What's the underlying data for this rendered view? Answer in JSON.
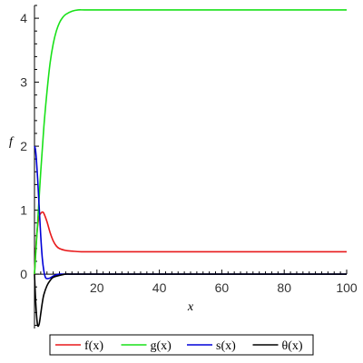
{
  "chart_data": {
    "type": "line",
    "xlabel": "x",
    "ylabel": "f",
    "xlim": [
      0,
      100
    ],
    "ylim": [
      -0.85,
      4.2
    ],
    "x_ticks": [
      20,
      40,
      60,
      80,
      100
    ],
    "y_ticks": [
      0,
      1,
      2,
      3,
      4
    ],
    "legend_position": "bottom",
    "grid": false,
    "series": [
      {
        "name": "f(x)",
        "color": "#e8191b",
        "x": [
          0,
          0.5,
          1,
          1.5,
          2,
          2.5,
          3,
          4,
          5,
          6,
          7,
          8,
          10,
          12,
          15,
          20,
          30,
          50,
          100
        ],
        "y": [
          0,
          0.45,
          0.75,
          0.9,
          0.95,
          0.97,
          0.95,
          0.82,
          0.65,
          0.52,
          0.44,
          0.4,
          0.37,
          0.36,
          0.35,
          0.35,
          0.35,
          0.35,
          0.35
        ]
      },
      {
        "name": "g(x)",
        "color": "#19e119",
        "x": [
          0,
          0.5,
          1,
          2,
          3,
          4,
          5,
          6,
          7,
          8,
          9,
          10,
          12,
          14,
          16,
          20,
          30,
          50,
          100
        ],
        "y": [
          0,
          0.4,
          0.8,
          1.6,
          2.3,
          2.85,
          3.3,
          3.6,
          3.8,
          3.93,
          4.01,
          4.06,
          4.11,
          4.13,
          4.13,
          4.13,
          4.13,
          4.13,
          4.13
        ]
      },
      {
        "name": "s(x)",
        "color": "#0000d8",
        "x": [
          0,
          0.3,
          0.6,
          1,
          1.5,
          2,
          2.5,
          3,
          3.5,
          4,
          5,
          6,
          7,
          8,
          10,
          15,
          30,
          100
        ],
        "y": [
          2.0,
          1.95,
          1.8,
          1.5,
          1.05,
          0.6,
          0.25,
          0.05,
          -0.05,
          -0.07,
          -0.06,
          -0.03,
          -0.01,
          0,
          0,
          0,
          0,
          0
        ]
      },
      {
        "name": "θ(x)",
        "color": "#000000",
        "x": [
          0,
          0.3,
          0.6,
          1,
          1.5,
          2,
          2.5,
          3,
          4,
          5,
          6,
          8,
          10,
          12,
          15,
          20,
          30,
          100
        ],
        "y": [
          0,
          -0.35,
          -0.6,
          -0.8,
          -0.78,
          -0.62,
          -0.45,
          -0.32,
          -0.18,
          -0.1,
          -0.05,
          -0.02,
          0,
          0,
          0,
          0,
          0,
          0
        ]
      }
    ]
  }
}
